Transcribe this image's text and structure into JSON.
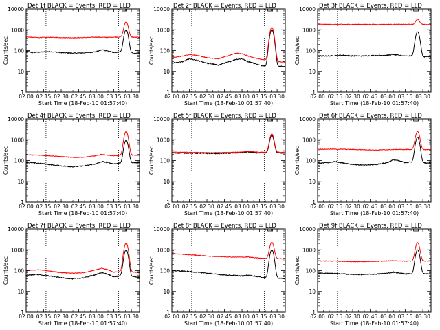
{
  "page": {
    "background": "#ffffff"
  },
  "common": {
    "xlabel": "Start Time (18-Feb-10 01:57:40)",
    "ylabel": "Counts/sec",
    "x_tick_labels": [
      "02:00",
      "02:15",
      "02:30",
      "02:45",
      "03:00",
      "03:15",
      "03:30"
    ],
    "y_tick_labels": [
      "1",
      "10",
      "100",
      "1000",
      "10000"
    ],
    "yscale": "log",
    "ylim": [
      1,
      10000
    ],
    "xlim_minutes_after_02_00": [
      0,
      97
    ],
    "dotted_vertical_lines_minutes_after_02_00": [
      17,
      79
    ],
    "colors": {
      "events": "#000000",
      "lld": "#ff0000"
    }
  },
  "chart_data": [
    {
      "type": "line",
      "title": "Det 1f BLACK = Events, RED = LLD",
      "series": [
        {
          "label": "Events",
          "color": "#000000",
          "base": [
            [
              0,
              95
            ],
            [
              5,
              80
            ],
            [
              12,
              85
            ],
            [
              20,
              90
            ],
            [
              30,
              80
            ],
            [
              40,
              75
            ],
            [
              50,
              78
            ],
            [
              60,
              88
            ],
            [
              65,
              110
            ],
            [
              70,
              95
            ],
            [
              75,
              80
            ],
            [
              80,
              85
            ],
            [
              85,
              80
            ],
            [
              88,
              75
            ],
            [
              97,
              75
            ]
          ],
          "peak": 1000
        },
        {
          "label": "LLD",
          "color": "#ff0000",
          "base": [
            [
              0,
              450
            ],
            [
              10,
              420
            ],
            [
              20,
              430
            ],
            [
              40,
              410
            ],
            [
              50,
              420
            ],
            [
              60,
              440
            ],
            [
              70,
              430
            ],
            [
              80,
              450
            ],
            [
              85,
              450
            ],
            [
              97,
              430
            ]
          ],
          "peak": 2400
        }
      ]
    },
    {
      "type": "line",
      "title": "Det 2f BLACK = Events, RED = LLD",
      "series": [
        {
          "label": "Events",
          "color": "#000000",
          "base": [
            [
              0,
              25
            ],
            [
              10,
              30
            ],
            [
              15,
              40
            ],
            [
              20,
              35
            ],
            [
              30,
              25
            ],
            [
              40,
              20
            ],
            [
              50,
              30
            ],
            [
              55,
              38
            ],
            [
              60,
              40
            ],
            [
              65,
              30
            ],
            [
              70,
              25
            ],
            [
              75,
              20
            ],
            [
              80,
              18
            ],
            [
              88,
              18
            ],
            [
              97,
              17
            ]
          ],
          "peak": 1000
        },
        {
          "label": "LLD",
          "color": "#ff0000",
          "base": [
            [
              0,
              45
            ],
            [
              10,
              55
            ],
            [
              15,
              65
            ],
            [
              20,
              60
            ],
            [
              30,
              45
            ],
            [
              40,
              40
            ],
            [
              50,
              60
            ],
            [
              55,
              75
            ],
            [
              60,
              70
            ],
            [
              65,
              55
            ],
            [
              70,
              45
            ],
            [
              75,
              40
            ],
            [
              80,
              35
            ],
            [
              88,
              30
            ],
            [
              97,
              28
            ]
          ],
          "peak": 1300
        }
      ]
    },
    {
      "type": "line",
      "title": "Det 3f BLACK = Events, RED = LLD",
      "series": [
        {
          "label": "Events",
          "color": "#000000",
          "base": [
            [
              0,
              55
            ],
            [
              10,
              55
            ],
            [
              20,
              60
            ],
            [
              30,
              55
            ],
            [
              40,
              55
            ],
            [
              50,
              58
            ],
            [
              60,
              60
            ],
            [
              65,
              65
            ],
            [
              70,
              58
            ],
            [
              75,
              55
            ],
            [
              80,
              55
            ],
            [
              88,
              50
            ],
            [
              97,
              50
            ]
          ],
          "peak": 800
        },
        {
          "label": "LLD",
          "color": "#ff0000",
          "base": [
            [
              0,
              1800
            ],
            [
              20,
              1800
            ],
            [
              40,
              1800
            ],
            [
              60,
              1800
            ],
            [
              80,
              1800
            ],
            [
              97,
              1800
            ]
          ],
          "peak": 3200
        }
      ]
    },
    {
      "type": "line",
      "title": "Det 4f BLACK = Events, RED = LLD",
      "series": [
        {
          "label": "Events",
          "color": "#000000",
          "base": [
            [
              0,
              80
            ],
            [
              10,
              75
            ],
            [
              20,
              65
            ],
            [
              30,
              55
            ],
            [
              40,
              50
            ],
            [
              50,
              55
            ],
            [
              60,
              70
            ],
            [
              65,
              90
            ],
            [
              70,
              80
            ],
            [
              75,
              70
            ],
            [
              80,
              75
            ],
            [
              88,
              80
            ],
            [
              97,
              80
            ]
          ],
          "peak": 950
        },
        {
          "label": "LLD",
          "color": "#ff0000",
          "base": [
            [
              0,
              190
            ],
            [
              10,
              180
            ],
            [
              20,
              170
            ],
            [
              30,
              155
            ],
            [
              40,
              140
            ],
            [
              50,
              145
            ],
            [
              60,
              170
            ],
            [
              65,
              200
            ],
            [
              70,
              180
            ],
            [
              75,
              170
            ],
            [
              80,
              175
            ],
            [
              88,
              180
            ],
            [
              97,
              180
            ]
          ],
          "peak": 2500
        }
      ]
    },
    {
      "type": "line",
      "title": "Det 5f BLACK = Events, RED = LLD",
      "series": [
        {
          "label": "Events",
          "color": "#000000",
          "base": [
            [
              0,
              230
            ],
            [
              10,
              230
            ],
            [
              20,
              225
            ],
            [
              30,
              220
            ],
            [
              40,
              220
            ],
            [
              50,
              225
            ],
            [
              60,
              240
            ],
            [
              65,
              260
            ],
            [
              70,
              240
            ],
            [
              75,
              230
            ],
            [
              80,
              230
            ],
            [
              88,
              230
            ],
            [
              97,
              230
            ]
          ],
          "peak": 1600
        },
        {
          "label": "LLD",
          "color": "#ff0000",
          "base": [
            [
              0,
              250
            ],
            [
              10,
              250
            ],
            [
              20,
              245
            ],
            [
              30,
              240
            ],
            [
              40,
              240
            ],
            [
              50,
              245
            ],
            [
              60,
              260
            ],
            [
              65,
              280
            ],
            [
              70,
              260
            ],
            [
              75,
              250
            ],
            [
              80,
              250
            ],
            [
              88,
              250
            ],
            [
              97,
              250
            ]
          ],
          "peak": 1900
        }
      ]
    },
    {
      "type": "line",
      "title": "Det 6f BLACK = Events, RED = LLD",
      "series": [
        {
          "label": "Events",
          "color": "#000000",
          "base": [
            [
              0,
              75
            ],
            [
              10,
              80
            ],
            [
              15,
              90
            ],
            [
              20,
              80
            ],
            [
              30,
              65
            ],
            [
              40,
              60
            ],
            [
              50,
              65
            ],
            [
              60,
              80
            ],
            [
              65,
              110
            ],
            [
              70,
              95
            ],
            [
              75,
              80
            ],
            [
              80,
              85
            ],
            [
              88,
              80
            ],
            [
              97,
              75
            ]
          ],
          "peak": 1300
        },
        {
          "label": "LLD",
          "color": "#ff0000",
          "base": [
            [
              0,
              350
            ],
            [
              20,
              350
            ],
            [
              40,
              330
            ],
            [
              50,
              320
            ],
            [
              60,
              330
            ],
            [
              70,
              340
            ],
            [
              80,
              340
            ],
            [
              88,
              340
            ],
            [
              97,
              330
            ]
          ],
          "peak": 2500
        }
      ]
    },
    {
      "type": "line",
      "title": "Det 7f BLACK = Events, RED = LLD",
      "series": [
        {
          "label": "Events",
          "color": "#000000",
          "base": [
            [
              0,
              60
            ],
            [
              10,
              65
            ],
            [
              20,
              55
            ],
            [
              30,
              45
            ],
            [
              40,
              40
            ],
            [
              50,
              45
            ],
            [
              60,
              65
            ],
            [
              65,
              80
            ],
            [
              70,
              65
            ],
            [
              75,
              50
            ],
            [
              80,
              55
            ],
            [
              88,
              55
            ],
            [
              97,
              45
            ]
          ],
          "peak": 1000
        },
        {
          "label": "LLD",
          "color": "#ff0000",
          "base": [
            [
              0,
              100
            ],
            [
              10,
              110
            ],
            [
              20,
              95
            ],
            [
              30,
              80
            ],
            [
              40,
              75
            ],
            [
              50,
              80
            ],
            [
              60,
              110
            ],
            [
              65,
              130
            ],
            [
              70,
              110
            ],
            [
              75,
              85
            ],
            [
              80,
              90
            ],
            [
              88,
              90
            ],
            [
              97,
              80
            ]
          ],
          "peak": 2100
        }
      ]
    },
    {
      "type": "line",
      "title": "Det 8f BLACK = Events, RED = LLD",
      "series": [
        {
          "label": "Events",
          "color": "#000000",
          "base": [
            [
              0,
              100
            ],
            [
              10,
              95
            ],
            [
              20,
              85
            ],
            [
              30,
              75
            ],
            [
              40,
              65
            ],
            [
              50,
              60
            ],
            [
              60,
              55
            ],
            [
              65,
              60
            ],
            [
              70,
              55
            ],
            [
              75,
              50
            ],
            [
              80,
              45
            ],
            [
              88,
              45
            ],
            [
              97,
              40
            ]
          ],
          "peak": 1000
        },
        {
          "label": "LLD",
          "color": "#ff0000",
          "base": [
            [
              0,
              650
            ],
            [
              10,
              600
            ],
            [
              20,
              550
            ],
            [
              30,
              500
            ],
            [
              40,
              470
            ],
            [
              50,
              450
            ],
            [
              60,
              440
            ],
            [
              65,
              450
            ],
            [
              70,
              420
            ],
            [
              75,
              400
            ],
            [
              80,
              380
            ],
            [
              88,
              380
            ],
            [
              97,
              360
            ]
          ],
          "peak": 2300
        }
      ]
    },
    {
      "type": "line",
      "title": "Det 9f BLACK = Events, RED = LLD",
      "series": [
        {
          "label": "Events",
          "color": "#000000",
          "base": [
            [
              0,
              75
            ],
            [
              10,
              75
            ],
            [
              20,
              70
            ],
            [
              30,
              65
            ],
            [
              40,
              65
            ],
            [
              50,
              68
            ],
            [
              60,
              75
            ],
            [
              65,
              85
            ],
            [
              70,
              75
            ],
            [
              75,
              70
            ],
            [
              80,
              70
            ],
            [
              88,
              70
            ],
            [
              97,
              70
            ]
          ],
          "peak": 1000
        },
        {
          "label": "LLD",
          "color": "#ff0000",
          "base": [
            [
              0,
              290
            ],
            [
              10,
              290
            ],
            [
              20,
              280
            ],
            [
              30,
              270
            ],
            [
              40,
              270
            ],
            [
              50,
              275
            ],
            [
              60,
              290
            ],
            [
              65,
              300
            ],
            [
              70,
              290
            ],
            [
              75,
              285
            ],
            [
              80,
              290
            ],
            [
              88,
              290
            ],
            [
              97,
              290
            ]
          ],
          "peak": 2200
        }
      ]
    }
  ]
}
